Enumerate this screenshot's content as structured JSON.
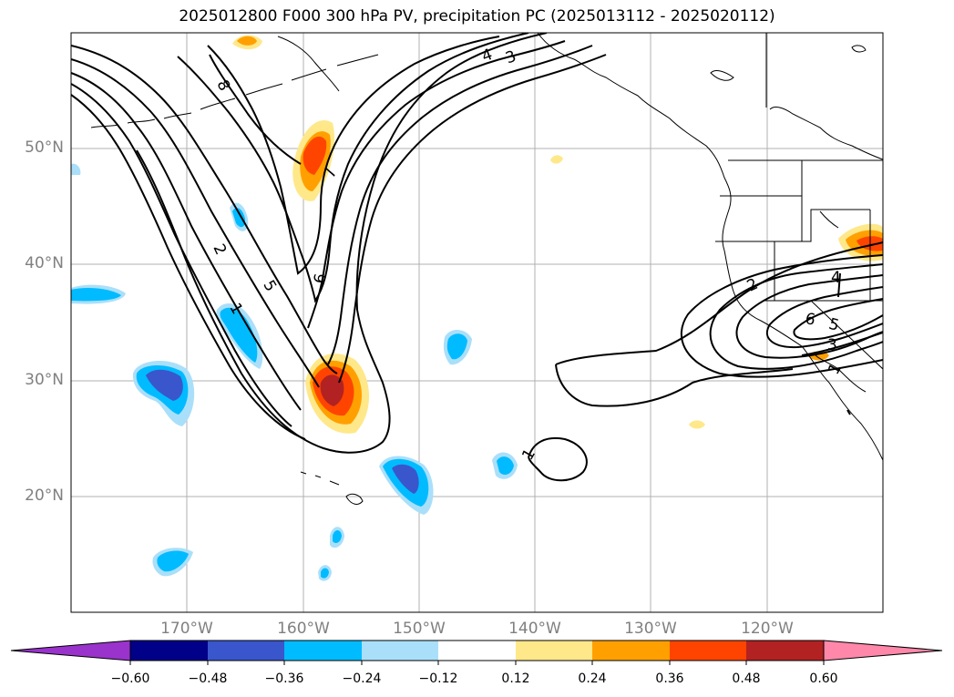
{
  "title": "2025012800 F000 300 hPa PV, precipitation PC (2025013112 - 2025020112)",
  "map": {
    "lat_labels": [
      "50°N",
      "40°N",
      "30°N",
      "20°N"
    ],
    "lon_labels": [
      "170°W",
      "160°W",
      "150°W",
      "140°W",
      "130°W",
      "120°W"
    ],
    "contour_labels": [
      "8",
      "7",
      "6",
      "5",
      "4",
      "3",
      "2",
      "1",
      "1",
      "2",
      "3",
      "4",
      "5",
      "6",
      "1",
      "4",
      "3"
    ]
  },
  "colorbar": {
    "ticks": [
      "−0.60",
      "−0.48",
      "−0.36",
      "−0.24",
      "−0.12",
      "0.12",
      "0.24",
      "0.36",
      "0.48",
      "0.60"
    ],
    "colors": [
      "#9933cc",
      "#000088",
      "#3a56cc",
      "#00bbff",
      "#aadffa",
      "#ffffff",
      "#ffe88a",
      "#ffa000",
      "#ff4400",
      "#b22222",
      "#ff88aa",
      "#ff88aa"
    ]
  }
}
